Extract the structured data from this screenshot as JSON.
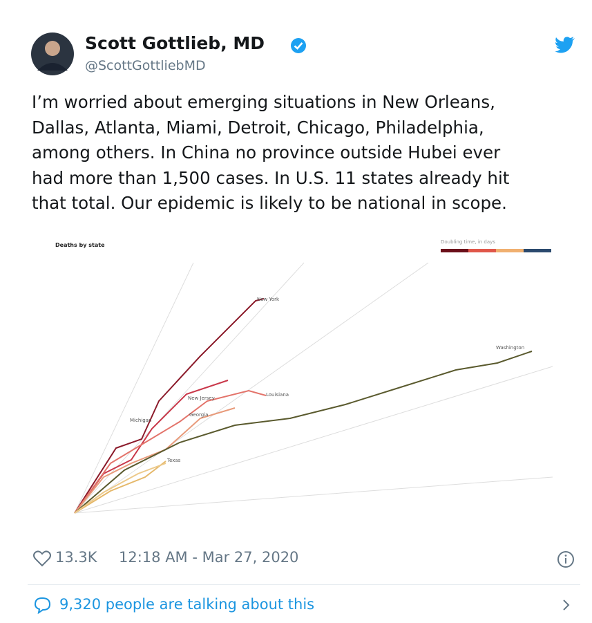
{
  "tweet": {
    "author": {
      "name": "Scott Gottlieb, MD",
      "handle": "@ScottGottliebMD"
    },
    "text_lines": [
      "I’m worried about emerging situations in New Orleans,",
      "Dallas, Atlanta, Miami, Detroit, Chicago, Philadelphia,",
      "among others. In China no province outside Hubei ever",
      "had more than 1,500 cases. In U.S. 11 states already hit",
      "that total. Our epidemic is likely to be national in scope."
    ],
    "image": {
      "title": "Deaths by state",
      "legend_title": "Doubling time, in days",
      "labels": [
        "New York",
        "Washington",
        "Louisiana",
        "New Jersey",
        "Michigan",
        "Georgia",
        "Texas"
      ]
    },
    "likes": "13.3K",
    "timestamp": "12:18 AM - Mar 27, 2020",
    "talking": "9,320 people are talking about this"
  }
}
